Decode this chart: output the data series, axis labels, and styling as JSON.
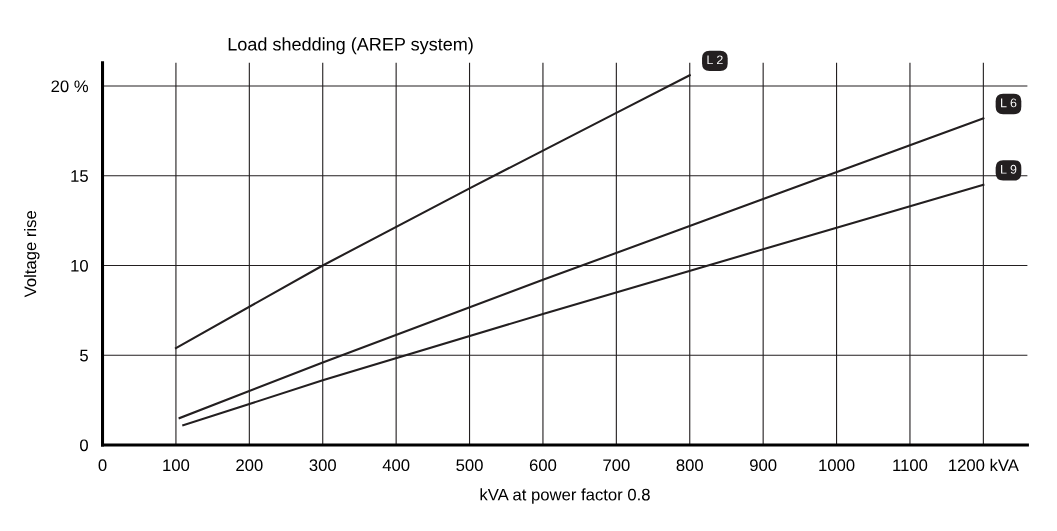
{
  "chart_data": {
    "type": "line",
    "title": "Load shedding (AREP system)",
    "xlabel": "kVA at power factor 0.8",
    "ylabel": "Voltage rise",
    "xlim": [
      0,
      1260
    ],
    "ylim": [
      0,
      21.3
    ],
    "xticks": [
      0,
      100,
      200,
      300,
      400,
      500,
      600,
      700,
      800,
      900,
      1000,
      1100,
      {
        "value": 1200,
        "label": "1200 kVA"
      }
    ],
    "yticks": [
      0,
      5,
      10,
      15,
      {
        "value": 20,
        "label": "20 %"
      }
    ],
    "grid": true,
    "legend": false,
    "marker": "none",
    "line_style": "solid",
    "series": [
      {
        "name": "L 2",
        "color": "#231f20",
        "x": [
          100,
          300,
          500,
          700,
          800
        ],
        "values": [
          5.4,
          10.0,
          14.3,
          18.5,
          20.6
        ]
      },
      {
        "name": "L 6",
        "color": "#231f20",
        "x": [
          105,
          300,
          600,
          900,
          1200
        ],
        "values": [
          1.5,
          4.6,
          9.2,
          13.7,
          18.2
        ]
      },
      {
        "name": "L 9",
        "color": "#231f20",
        "x": [
          110,
          300,
          600,
          900,
          1200
        ],
        "values": [
          1.1,
          3.6,
          7.3,
          10.9,
          14.5
        ]
      }
    ]
  }
}
